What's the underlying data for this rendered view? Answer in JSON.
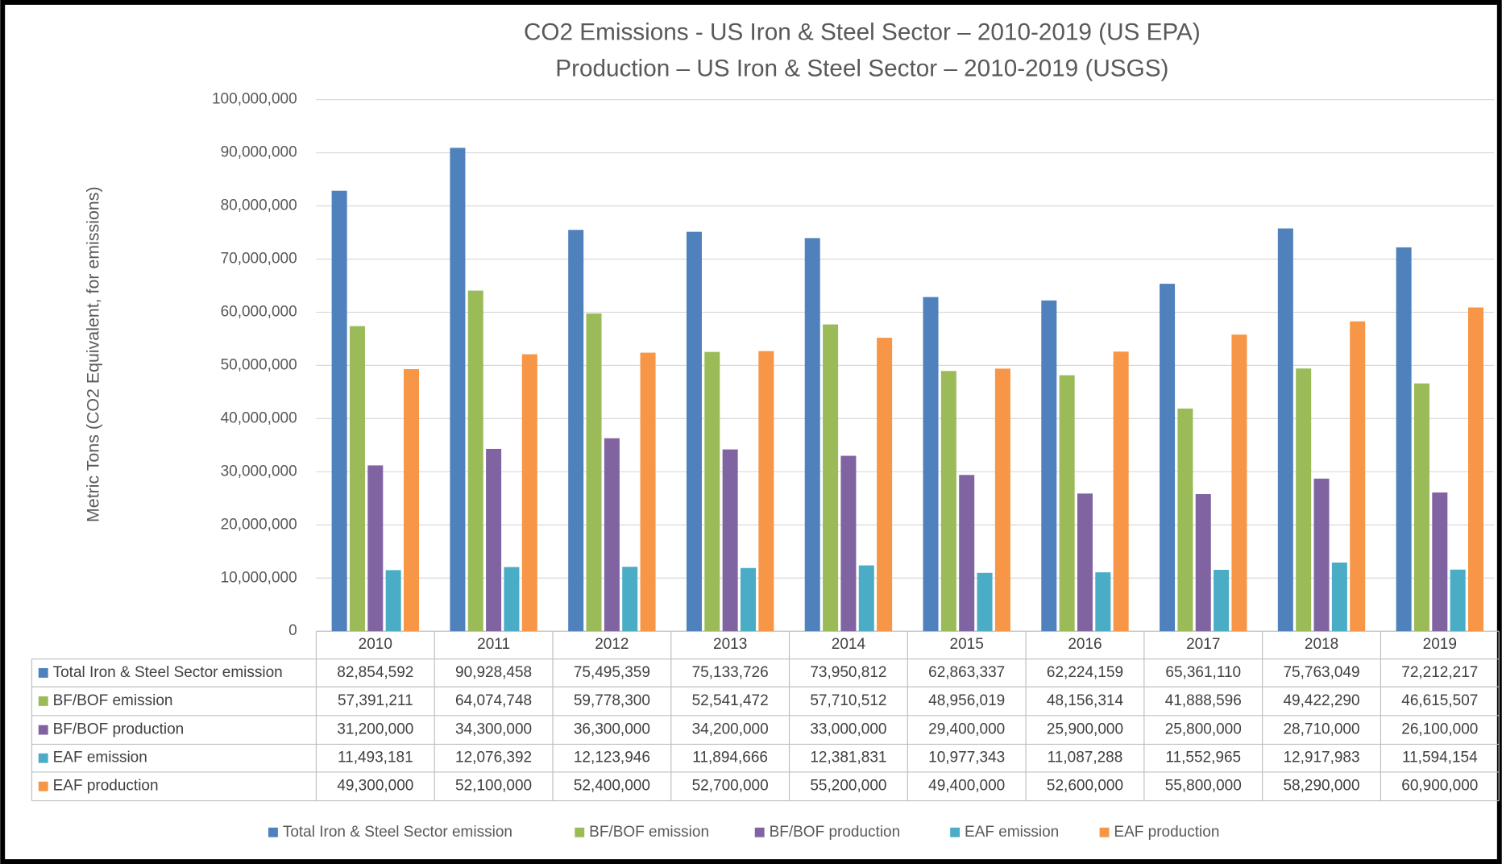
{
  "chart_data": {
    "type": "bar",
    "title": "CO2 Emissions - US Iron & Steel Sector – 2010-2019 (US EPA)",
    "subtitle": "Production – US Iron & Steel Sector – 2010-2019 (USGS)",
    "y_label": "Metric Tons (CO2 Equivalent, for emissions)",
    "categories": [
      "2010",
      "2011",
      "2012",
      "2013",
      "2014",
      "2015",
      "2016",
      "2017",
      "2018",
      "2019"
    ],
    "ylim": [
      0,
      100000000
    ],
    "yticks": [
      0,
      {
        "value": 10000000,
        "label": "10,000,000"
      },
      {
        "value": 20000000,
        "label": "20,000,000"
      },
      {
        "value": 30000000,
        "label": "30,000,000"
      },
      {
        "value": 40000000,
        "label": "40,000,000"
      },
      {
        "value": 50000000,
        "label": "50,000,000"
      },
      {
        "value": 60000000,
        "label": "60,000,000"
      },
      {
        "value": 70000000,
        "label": "70,000,000"
      },
      {
        "value": 80000000,
        "label": "80,000,000"
      },
      {
        "value": 90000000,
        "label": "90,000,000"
      },
      {
        "value": 100000000,
        "label": "100,000,000"
      }
    ],
    "grid": true,
    "legend": "bottom",
    "series": [
      {
        "name": "Total Iron & Steel Sector emission",
        "color": "#4f81bd",
        "values": [
          82854592,
          90928458,
          75495359,
          75133726,
          73950812,
          62863337,
          62224159,
          65361110,
          75763049,
          72212217
        ],
        "value_labels": [
          "82,854,592",
          "90,928,458",
          "75,495,359",
          "75,133,726",
          "73,950,812",
          "62,863,337",
          "62,224,159",
          "65,361,110",
          "75,763,049",
          "72,212,217"
        ]
      },
      {
        "name": "BF/BOF emission",
        "color": "#9bbb59",
        "values": [
          57391211,
          64074748,
          59778300,
          52541472,
          57710512,
          48956019,
          48156314,
          41888596,
          49422290,
          46615507
        ],
        "value_labels": [
          "57,391,211",
          "64,074,748",
          "59,778,300",
          "52,541,472",
          "57,710,512",
          "48,956,019",
          "48,156,314",
          "41,888,596",
          "49,422,290",
          "46,615,507"
        ]
      },
      {
        "name": "BF/BOF production",
        "color": "#8064a2",
        "values": [
          31200000,
          34300000,
          36300000,
          34200000,
          33000000,
          29400000,
          25900000,
          25800000,
          28710000,
          26100000
        ],
        "value_labels": [
          "31,200,000",
          "34,300,000",
          "36,300,000",
          "34,200,000",
          "33,000,000",
          "29,400,000",
          "25,900,000",
          "25,800,000",
          "28,710,000",
          "26,100,000"
        ]
      },
      {
        "name": "EAF emission",
        "color": "#4bacc6",
        "values": [
          11493181,
          12076392,
          12123946,
          11894666,
          12381831,
          10977343,
          11087288,
          11552965,
          12917983,
          11594154
        ],
        "value_labels": [
          "11,493,181",
          "12,076,392",
          "12,123,946",
          "11,894,666",
          "12,381,831",
          "10,977,343",
          "11,087,288",
          "11,552,965",
          "12,917,983",
          "11,594,154"
        ]
      },
      {
        "name": "EAF production",
        "color": "#f79646",
        "values": [
          49300000,
          52100000,
          52400000,
          52700000,
          55200000,
          49400000,
          52600000,
          55800000,
          58290000,
          60900000
        ],
        "value_labels": [
          "49,300,000",
          "52,100,000",
          "52,400,000",
          "52,700,000",
          "55,200,000",
          "49,400,000",
          "52,600,000",
          "55,800,000",
          "58,290,000",
          "60,900,000"
        ]
      }
    ]
  }
}
